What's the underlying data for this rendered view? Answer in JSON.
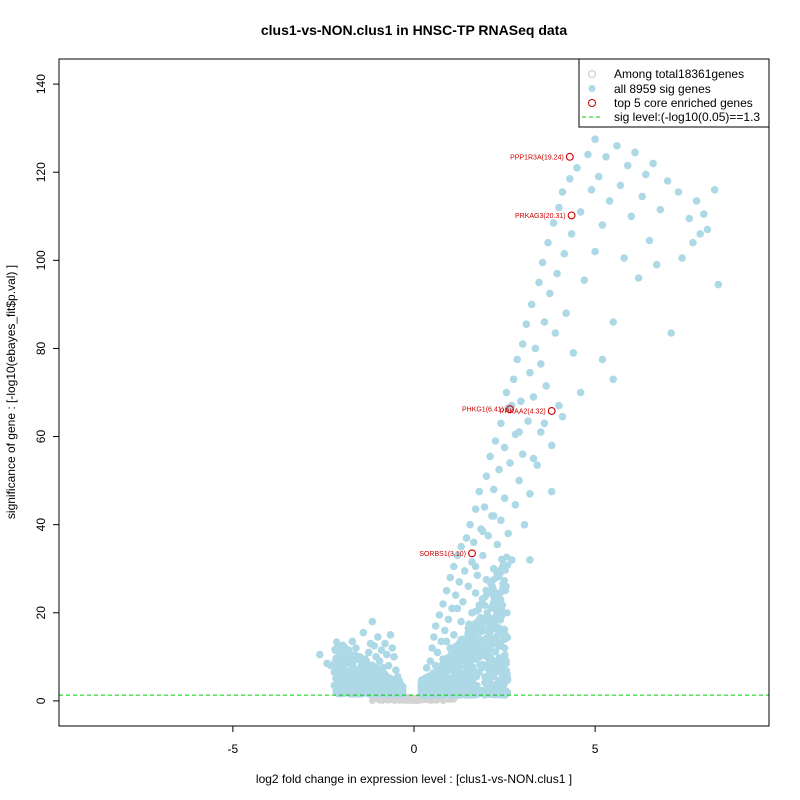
{
  "chart_data": {
    "type": "scatter",
    "title": "clus1-vs-NON.clus1 in HNSC-TP RNASeq data",
    "xlabel": "log2 fold change in expression level : [clus1-vs-NON.clus1 ]",
    "ylabel": "significance of gene : [-log10(ebayes_fit$p.val) ]",
    "xlim": [
      -9.8,
      9.8
    ],
    "ylim": [
      -5.7,
      145.7
    ],
    "x_ticks": [
      -5,
      0,
      5
    ],
    "y_ticks": [
      0,
      20,
      40,
      60,
      80,
      100,
      120,
      140
    ],
    "grid": false,
    "legend_position": "top-right",
    "legend": [
      {
        "label": "Among total18361genes",
        "color": "#d3d3d3",
        "marker": "open-circle"
      },
      {
        "label": "all 8959 sig genes",
        "color": "#add8e6",
        "marker": "filled-circle"
      },
      {
        "label": "top 5 core enriched genes",
        "color": "#cc0000",
        "marker": "open-circle"
      },
      {
        "label": "sig level:(-log10(0.05)==1.3",
        "color": "#00cc00",
        "marker": "dashed-line"
      }
    ],
    "sig_level": 1.3,
    "colors": {
      "background_genes": "#d3d3d3",
      "sig_genes": "#add8e6",
      "core_genes": "#cc0000",
      "sig_line": "#00cc00",
      "axis": "#000000"
    },
    "series": [
      {
        "name": "all 8959 sig genes",
        "points": [
          [
            -2.6,
            10.5
          ],
          [
            -2.4,
            8.5
          ],
          [
            -2.3,
            8.0
          ],
          [
            -2.2,
            6.5
          ],
          [
            -2.1,
            5.0
          ],
          [
            -2.0,
            7.5
          ],
          [
            -1.9,
            9.0
          ],
          [
            -1.8,
            11.5
          ],
          [
            -1.7,
            13.5
          ],
          [
            -1.6,
            12.0
          ],
          [
            -1.5,
            10.0
          ],
          [
            -1.45,
            8.0
          ],
          [
            -1.4,
            15.5
          ],
          [
            -1.35,
            9.5
          ],
          [
            -1.3,
            6.0
          ],
          [
            -1.25,
            11.0
          ],
          [
            -1.2,
            13.0
          ],
          [
            -1.15,
            18.0
          ],
          [
            -1.1,
            12.5
          ],
          [
            -1.05,
            10.0
          ],
          [
            -1.0,
            14.5
          ],
          [
            -0.95,
            9.0
          ],
          [
            -0.9,
            11.5
          ],
          [
            -0.85,
            7.5
          ],
          [
            -0.8,
            13.0
          ],
          [
            -0.75,
            10.5
          ],
          [
            -0.7,
            8.0
          ],
          [
            -0.65,
            15.0
          ],
          [
            -0.6,
            12.0
          ],
          [
            -0.55,
            10.0
          ],
          [
            -0.5,
            7.0
          ],
          [
            -0.45,
            5.5
          ],
          [
            -0.4,
            4.5
          ],
          [
            -0.35,
            3.5
          ],
          [
            -1.8,
            5.5
          ],
          [
            -1.6,
            4.5
          ],
          [
            -1.4,
            3.8
          ],
          [
            -1.2,
            4.0
          ],
          [
            -1.0,
            3.5
          ],
          [
            -0.8,
            3.0
          ],
          [
            -1.7,
            8.5
          ],
          [
            -1.5,
            6.5
          ],
          [
            -1.3,
            8.5
          ],
          [
            -1.1,
            7.0
          ],
          [
            -0.9,
            5.5
          ],
          [
            -0.7,
            5.0
          ],
          [
            -0.6,
            3.0
          ],
          [
            -2.0,
            4.0
          ],
          [
            -2.2,
            3.5
          ],
          [
            -1.9,
            3.2
          ],
          [
            0.25,
            3.0
          ],
          [
            0.3,
            5.0
          ],
          [
            0.35,
            7.5
          ],
          [
            0.4,
            4.0
          ],
          [
            0.45,
            9.0
          ],
          [
            0.5,
            12.0
          ],
          [
            0.5,
            6.0
          ],
          [
            0.55,
            14.5
          ],
          [
            0.6,
            8.0
          ],
          [
            0.6,
            17.0
          ],
          [
            0.65,
            11.0
          ],
          [
            0.7,
            19.5
          ],
          [
            0.7,
            5.5
          ],
          [
            0.75,
            13.5
          ],
          [
            0.8,
            22.0
          ],
          [
            0.8,
            9.5
          ],
          [
            0.85,
            16.0
          ],
          [
            0.9,
            25.0
          ],
          [
            0.9,
            7.0
          ],
          [
            0.95,
            18.5
          ],
          [
            1.0,
            28.0
          ],
          [
            1.0,
            12.0
          ],
          [
            1.05,
            21.0
          ],
          [
            1.1,
            30.5
          ],
          [
            1.1,
            15.0
          ],
          [
            1.15,
            24.0
          ],
          [
            1.2,
            33.0
          ],
          [
            1.2,
            9.0
          ],
          [
            1.25,
            27.0
          ],
          [
            1.3,
            35.0
          ],
          [
            1.3,
            18.0
          ],
          [
            1.35,
            22.5
          ],
          [
            1.4,
            29.5
          ],
          [
            1.4,
            12.5
          ],
          [
            1.45,
            37.0
          ],
          [
            1.5,
            26.0
          ],
          [
            1.5,
            16.5
          ],
          [
            1.55,
            40.0
          ],
          [
            1.6,
            31.5
          ],
          [
            1.6,
            20.0
          ],
          [
            1.65,
            36.0
          ],
          [
            1.7,
            43.5
          ],
          [
            1.7,
            24.5
          ],
          [
            1.75,
            28.5
          ],
          [
            1.8,
            47.5
          ],
          [
            1.8,
            14.0
          ],
          [
            1.85,
            39.0
          ],
          [
            1.9,
            33.0
          ],
          [
            1.9,
            22.0
          ],
          [
            1.95,
            44.0
          ],
          [
            2.0,
            51.0
          ],
          [
            2.0,
            27.5
          ],
          [
            2.05,
            37.5
          ],
          [
            2.1,
            55.5
          ],
          [
            2.1,
            18.5
          ],
          [
            2.15,
            42.0
          ],
          [
            2.2,
            48.0
          ],
          [
            2.2,
            30.0
          ],
          [
            2.25,
            59.0
          ],
          [
            2.3,
            35.5
          ],
          [
            2.3,
            13.5
          ],
          [
            2.35,
            52.5
          ],
          [
            2.4,
            63.0
          ],
          [
            2.4,
            41.0
          ],
          [
            2.45,
            25.0
          ],
          [
            2.5,
            57.5
          ],
          [
            2.5,
            46.0
          ],
          [
            2.55,
            70.0
          ],
          [
            2.6,
            38.0
          ],
          [
            2.6,
            66.5
          ],
          [
            2.65,
            54.0
          ],
          [
            2.7,
            32.0
          ],
          [
            2.75,
            73.0
          ],
          [
            2.8,
            60.5
          ],
          [
            2.8,
            44.5
          ],
          [
            2.85,
            77.5
          ],
          [
            2.9,
            50.0
          ],
          [
            2.95,
            68.0
          ],
          [
            3.0,
            81.0
          ],
          [
            3.0,
            56.0
          ],
          [
            3.05,
            40.0
          ],
          [
            3.1,
            85.5
          ],
          [
            3.15,
            63.5
          ],
          [
            3.2,
            74.5
          ],
          [
            3.2,
            47.0
          ],
          [
            3.25,
            90.0
          ],
          [
            3.3,
            69.0
          ],
          [
            3.35,
            80.0
          ],
          [
            3.4,
            53.5
          ],
          [
            3.45,
            95.0
          ],
          [
            3.5,
            76.5
          ],
          [
            3.5,
            61.0
          ],
          [
            3.55,
            99.5
          ],
          [
            3.6,
            86.0
          ],
          [
            3.65,
            71.5
          ],
          [
            3.7,
            104.0
          ],
          [
            3.75,
            92.5
          ],
          [
            3.8,
            58.0
          ],
          [
            3.85,
            108.5
          ],
          [
            3.9,
            83.5
          ],
          [
            3.95,
            97.0
          ],
          [
            4.0,
            112.0
          ],
          [
            4.0,
            67.0
          ],
          [
            4.1,
            115.5
          ],
          [
            4.15,
            101.5
          ],
          [
            4.2,
            88.0
          ],
          [
            4.3,
            118.5
          ],
          [
            4.35,
            106.0
          ],
          [
            4.4,
            79.0
          ],
          [
            4.5,
            121.0
          ],
          [
            4.6,
            111.0
          ],
          [
            4.7,
            95.5
          ],
          [
            4.8,
            124.0
          ],
          [
            4.9,
            116.0
          ],
          [
            5.0,
            102.0
          ],
          [
            5.0,
            127.5
          ],
          [
            5.1,
            119.0
          ],
          [
            5.2,
            108.0
          ],
          [
            5.3,
            123.5
          ],
          [
            5.4,
            113.5
          ],
          [
            5.5,
            86.0
          ],
          [
            5.6,
            126.0
          ],
          [
            5.7,
            117.0
          ],
          [
            5.8,
            100.5
          ],
          [
            5.9,
            121.5
          ],
          [
            6.0,
            110.0
          ],
          [
            6.1,
            124.5
          ],
          [
            6.2,
            96.0
          ],
          [
            6.3,
            114.5
          ],
          [
            6.4,
            119.5
          ],
          [
            6.5,
            104.5
          ],
          [
            6.6,
            122.0
          ],
          [
            6.7,
            99.0
          ],
          [
            6.8,
            111.5
          ],
          [
            7.0,
            118.0
          ],
          [
            7.1,
            83.5
          ],
          [
            7.3,
            115.5
          ],
          [
            7.4,
            100.5
          ],
          [
            7.6,
            109.5
          ],
          [
            7.7,
            104.0
          ],
          [
            7.8,
            113.5
          ],
          [
            7.9,
            106.0
          ],
          [
            8.0,
            110.5
          ],
          [
            8.1,
            107.0
          ],
          [
            8.3,
            116.0
          ],
          [
            8.4,
            94.5
          ],
          [
            5.5,
            73.0
          ],
          [
            5.2,
            77.5
          ],
          [
            4.6,
            70.0
          ],
          [
            4.1,
            64.5
          ],
          [
            3.6,
            63.0
          ],
          [
            3.3,
            55.0
          ],
          [
            2.9,
            61.0
          ],
          [
            2.7,
            67.0
          ],
          [
            2.2,
            42.0
          ],
          [
            1.9,
            38.5
          ],
          [
            1.7,
            30.5
          ],
          [
            3.8,
            47.5
          ],
          [
            2.5,
            14.0
          ],
          [
            3.2,
            32.0
          ],
          [
            1.2,
            21.0
          ],
          [
            0.9,
            13.5
          ],
          [
            1.5,
            9.5
          ],
          [
            1.8,
            6.5
          ],
          [
            2.1,
            10.0
          ],
          [
            2.3,
            7.0
          ],
          [
            2.0,
            4.5
          ],
          [
            1.4,
            5.0
          ],
          [
            1.1,
            4.0
          ],
          [
            0.7,
            3.0
          ]
        ]
      },
      {
        "name": "top 5 core enriched genes",
        "points": [
          {
            "label": "PPP1R3A(19.24)",
            "x": 4.3,
            "y": 123.5
          },
          {
            "label": "PRKAG3(20.31)",
            "x": 4.35,
            "y": 110.2
          },
          {
            "label": "PHKG1(6.41)",
            "x": 2.65,
            "y": 66.2
          },
          {
            "label": "PRKAA2(4.32)",
            "x": 3.8,
            "y": 65.8
          },
          {
            "label": "SORBS1(3.10)",
            "x": 1.6,
            "y": 33.5
          }
        ]
      }
    ]
  }
}
